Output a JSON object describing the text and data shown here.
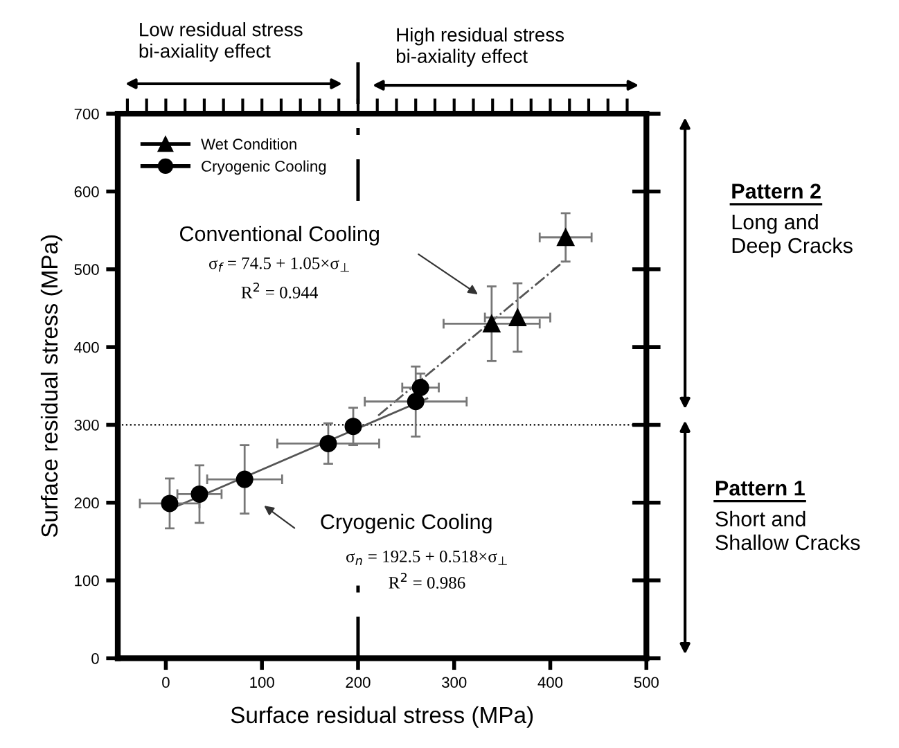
{
  "chart_data": {
    "type": "scatter",
    "xlabel": "Surface residual stress (MPa)",
    "ylabel": "Surface residual stress (MPa)",
    "xlim": [
      -50,
      500
    ],
    "xticks": [
      0,
      100,
      200,
      300,
      400,
      500
    ],
    "ylim": [
      0,
      700
    ],
    "yticks": [
      0,
      100,
      200,
      300,
      400,
      500,
      600,
      700
    ],
    "tick_labels": "xy",
    "grid": false,
    "legend": "top left",
    "series": [
      {
        "name": "Wet Condition",
        "color": "#000000",
        "marker": "triangle",
        "x": [
          339,
          366,
          416
        ],
        "values": [
          430,
          438,
          541
        ],
        "errors": [
          48,
          44,
          31
        ],
        "xerrors": [
          50,
          34,
          27
        ]
      },
      {
        "name": "Cryogenic Cooling",
        "color": "#000000",
        "marker": "circle",
        "x": [
          4,
          35,
          82,
          169,
          195,
          260,
          265
        ],
        "values": [
          199,
          211,
          230,
          276,
          298,
          330,
          348
        ],
        "errors": [
          32,
          37,
          44,
          26,
          24,
          45,
          18
        ],
        "xerrors": [
          31,
          23,
          39,
          53,
          null,
          53,
          19
        ]
      },
      {
        "type": "line",
        "color": "#555555",
        "line_style": "dashdot",
        "x": [
          221,
          413
        ],
        "values": [
          312,
          509
        ]
      },
      {
        "type": "line",
        "color": "#555555",
        "line_style": "solid",
        "x": [
          5,
          272
        ],
        "values": [
          192,
          334
        ]
      }
    ],
    "ref_lines": [
      {
        "axis": "y",
        "value": 300,
        "line_style": "dotted",
        "color": "#000000"
      },
      {
        "axis": "x",
        "value": 200,
        "line_style": "dashdot",
        "color": "#000000"
      }
    ],
    "annotations": [
      "Low residual stress\nbi-axiality effect",
      "High residual stress\nbi-axiality effect",
      "Pattern 2",
      "Long and\nDeep Cracks",
      "Pattern 1",
      "Short and\nShallow Cracks",
      "Conventional Cooling",
      "σ$_{f}$ = 74.5 + 1.05×σ$_{⊥}$",
      "R$^{2}$ = 0.944",
      "Cryogenic Cooling",
      "σ$_{n}$ = 192.5 + 0.518×σ$_{⊥}$",
      "R$^{2}$ = 0.986"
    ]
  }
}
